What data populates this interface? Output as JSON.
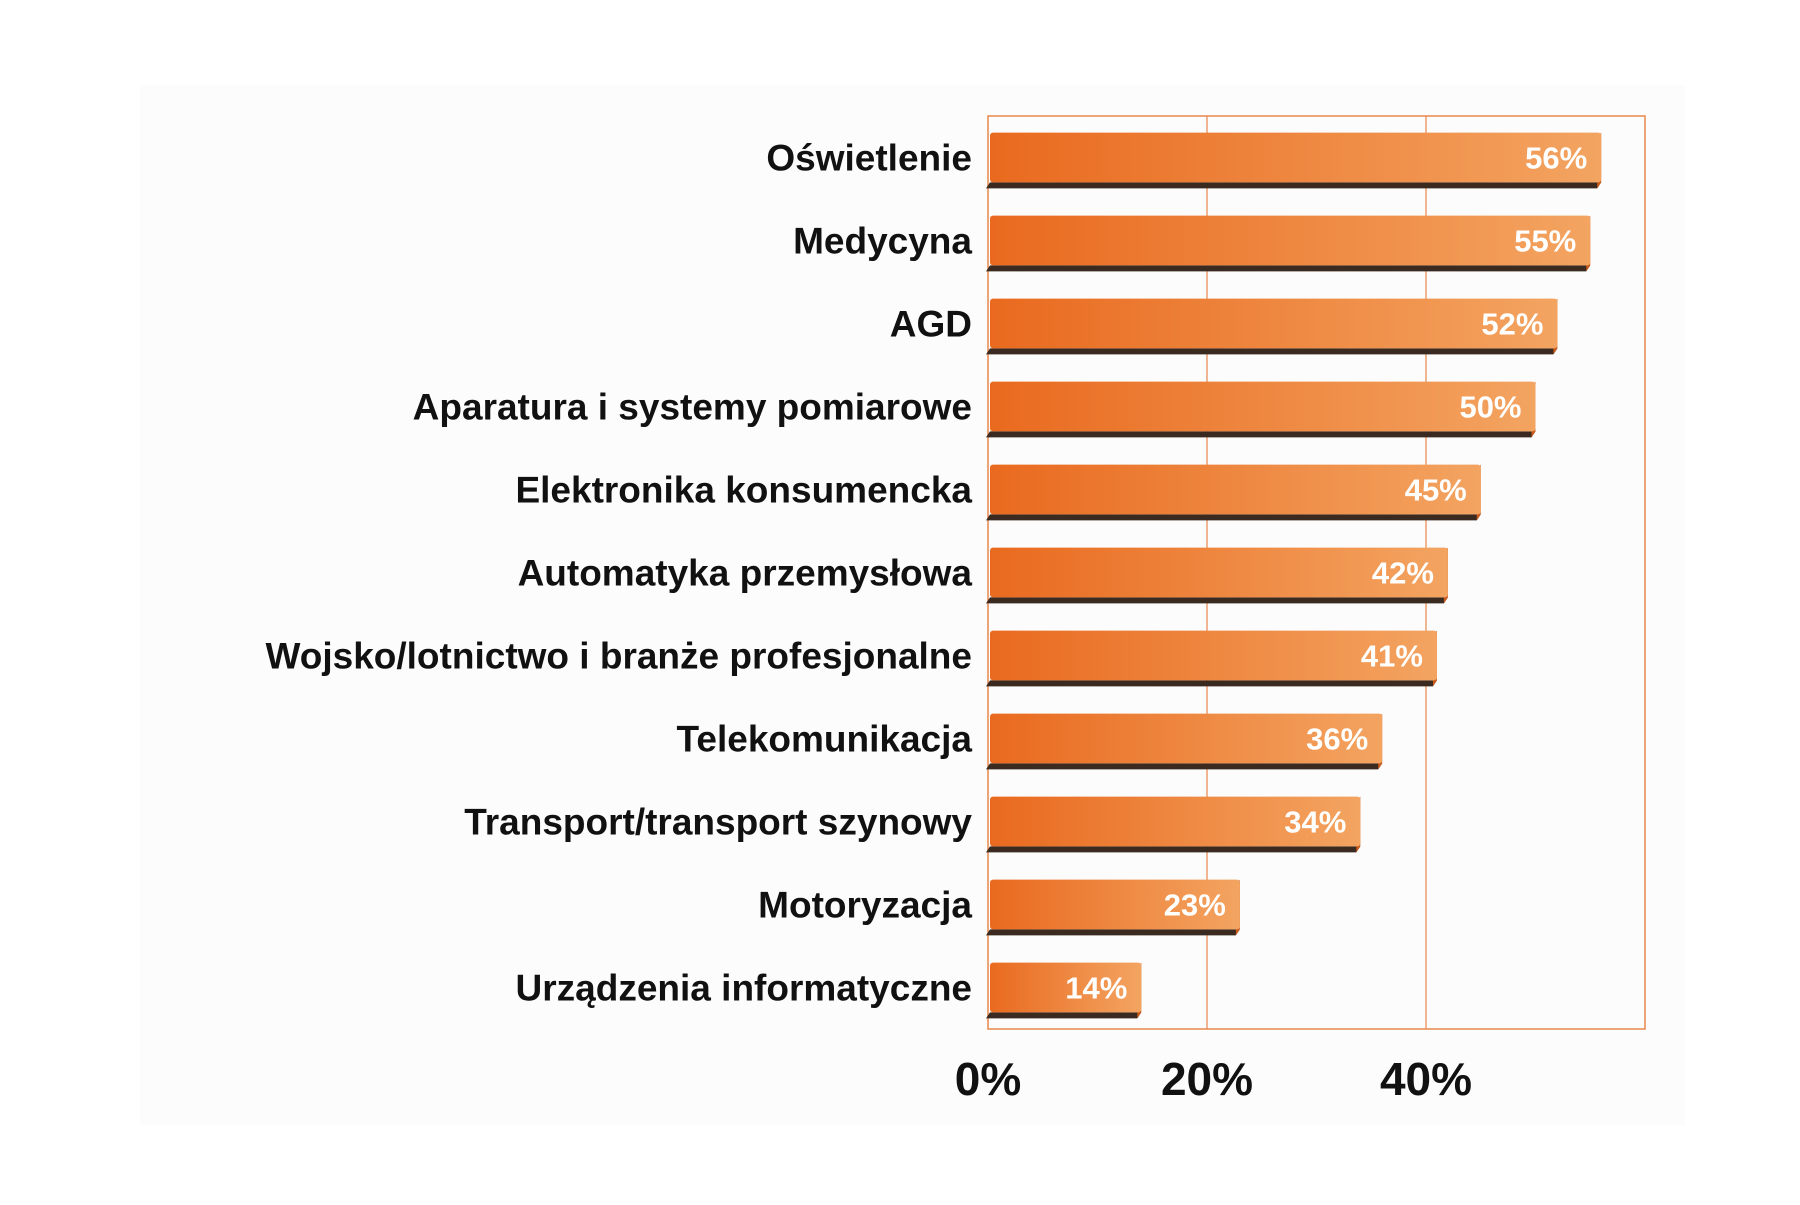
{
  "chart_data": {
    "type": "bar",
    "orientation": "horizontal",
    "categories": [
      "Oświetlenie",
      "Medycyna",
      "AGD",
      "Aparatura i systemy pomiarowe",
      "Elektronika konsumencka",
      "Automatyka przemysłowa",
      "Wojsko/lotnictwo i branże profesjonalne",
      "Telekomunikacja",
      "Transport/transport szynowy",
      "Motoryzacja",
      "Urządzenia informatyczne"
    ],
    "values": [
      56,
      55,
      52,
      50,
      45,
      42,
      41,
      36,
      34,
      23,
      14
    ],
    "value_labels": [
      "56%",
      "55%",
      "52%",
      "50%",
      "45%",
      "42%",
      "41%",
      "36%",
      "34%",
      "23%",
      "14%"
    ],
    "x_ticks": [
      0,
      20,
      40
    ],
    "x_tick_labels": [
      "0%",
      "20%",
      "40%"
    ],
    "xlim": [
      0,
      60
    ],
    "unit": "%",
    "grid": true,
    "legend": "none",
    "colors": {
      "bar_light": "#f3a461",
      "bar_dark": "#e96a1f",
      "bar_shadow": "#3a2a20",
      "frame": "#e8874a",
      "plot_background": "#fcfcfc",
      "label_text": "#111111",
      "value_text": "#ffffff"
    }
  }
}
